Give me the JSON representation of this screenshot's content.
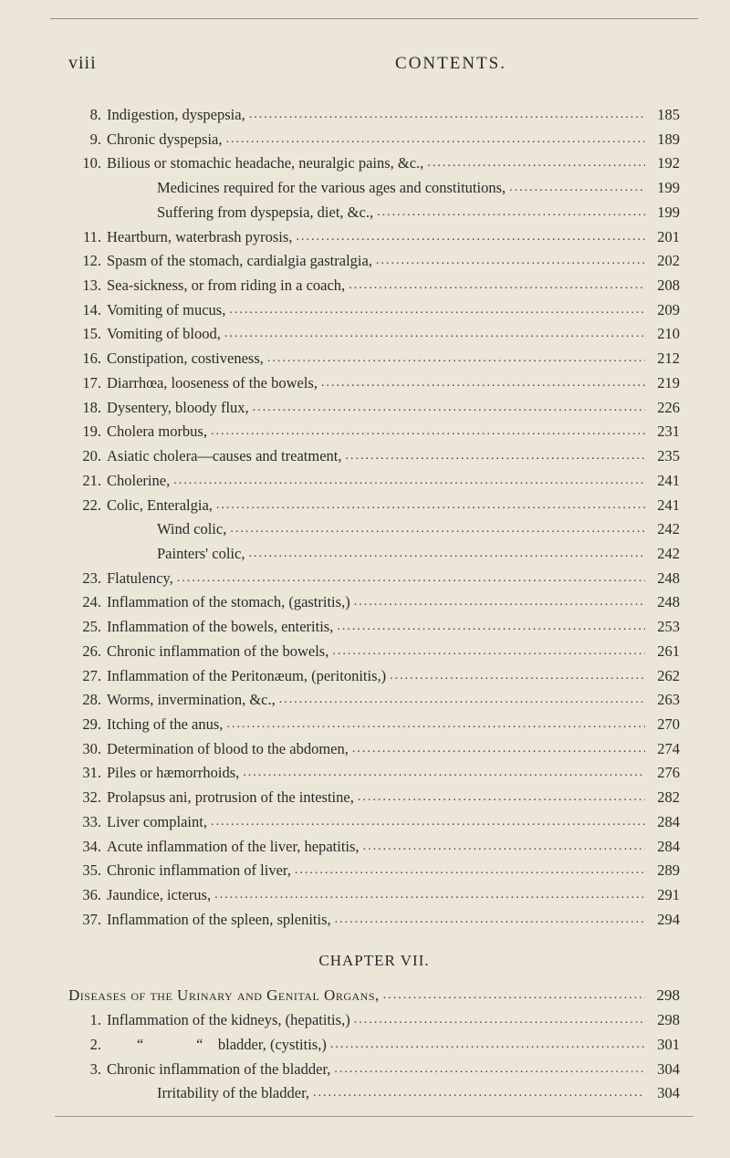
{
  "header": {
    "page_roman": "viii",
    "running": "CONTENTS."
  },
  "entries": [
    {
      "n": "8.",
      "label": "Indigestion, dyspepsia,",
      "pg": "185"
    },
    {
      "n": "9.",
      "label": "Chronic dyspepsia,",
      "pg": "189"
    },
    {
      "n": "10.",
      "label": "Bilious or stomachic headache, neuralgic pains, &c.,",
      "pg": "192"
    },
    {
      "sub": true,
      "label": "Medicines required for the various ages and constitutions,",
      "pg": "199"
    },
    {
      "sub": true,
      "label": "Suffering from dyspepsia, diet, &c.,",
      "pg": "199"
    },
    {
      "n": "11.",
      "label": "Heartburn, waterbrash pyrosis,",
      "pg": "201"
    },
    {
      "n": "12.",
      "label": "Spasm of the stomach, cardialgia gastralgia,",
      "pg": "202"
    },
    {
      "n": "13.",
      "label": "Sea-sickness, or from riding in a coach,",
      "pg": "208"
    },
    {
      "n": "14.",
      "label": "Vomiting of mucus,",
      "pg": "209"
    },
    {
      "n": "15.",
      "label": "Vomiting of blood,",
      "pg": "210"
    },
    {
      "n": "16.",
      "label": "Constipation, costiveness,",
      "pg": "212"
    },
    {
      "n": "17.",
      "label": "Diarrhœa, looseness of the bowels,",
      "pg": "219"
    },
    {
      "n": "18.",
      "label": "Dysentery, bloody flux,",
      "pg": "226"
    },
    {
      "n": "19.",
      "label": "Cholera morbus,",
      "pg": "231"
    },
    {
      "n": "20.",
      "label": "Asiatic cholera—causes and treatment,",
      "pg": "235"
    },
    {
      "n": "21.",
      "label": "Cholerine,",
      "pg": "241"
    },
    {
      "n": "22.",
      "label": "Colic, Enteralgia,",
      "pg": "241"
    },
    {
      "sub": true,
      "label": "Wind colic,",
      "pg": "242"
    },
    {
      "sub": true,
      "label": "Painters' colic,",
      "pg": "242"
    },
    {
      "n": "23.",
      "label": "Flatulency,",
      "pg": "248"
    },
    {
      "n": "24.",
      "label": "Inflammation of the stomach, (gastritis,)",
      "pg": "248"
    },
    {
      "n": "25.",
      "label": "Inflammation of the bowels, enteritis,",
      "pg": "253"
    },
    {
      "n": "26.",
      "label": "Chronic inflammation of the bowels,",
      "pg": "261"
    },
    {
      "n": "27.",
      "label": "Inflammation of the Peritonæum, (peritonitis,)",
      "pg": "262"
    },
    {
      "n": "28.",
      "label": "Worms, invermination, &c.,",
      "pg": "263"
    },
    {
      "n": "29.",
      "label": "Itching of the anus,",
      "pg": "270"
    },
    {
      "n": "30.",
      "label": "Determination of blood to the abdomen,",
      "pg": "274"
    },
    {
      "n": "31.",
      "label": "Piles or hæmorrhoids,",
      "pg": "276"
    },
    {
      "n": "32.",
      "label": "Prolapsus ani, protrusion of the intestine,",
      "pg": "282"
    },
    {
      "n": "33.",
      "label": "Liver complaint,",
      "pg": "284"
    },
    {
      "n": "34.",
      "label": "Acute inflammation of the liver, hepatitis,",
      "pg": "284"
    },
    {
      "n": "35.",
      "label": "Chronic inflammation of liver,",
      "pg": "289"
    },
    {
      "n": "36.",
      "label": "Jaundice, icterus,",
      "pg": "291"
    },
    {
      "n": "37.",
      "label": "Inflammation of the spleen, splenitis,",
      "pg": "294"
    }
  ],
  "chapter": {
    "title": "CHAPTER VII.",
    "section_label": "Diseases of the Urinary and Genital Organs,",
    "section_pg": "298",
    "items": [
      {
        "n": "1.",
        "label": "Inflammation of the kidneys, (hepatitis,)",
        "pg": "298"
      },
      {
        "n": "2.",
        "label": "        “              “    bladder, (cystitis,)",
        "pg": "301"
      },
      {
        "n": "3.",
        "label": "Chronic inflammation of the bladder,",
        "pg": "304"
      },
      {
        "sub": true,
        "label": "Irritability of the bladder,",
        "pg": "304"
      }
    ]
  }
}
